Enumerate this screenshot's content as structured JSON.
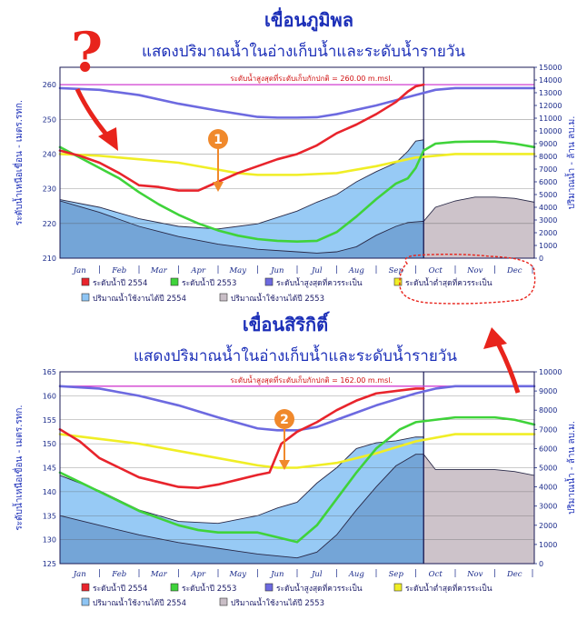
{
  "chart_data": [
    {
      "type": "area",
      "title": "เขื่อนภูมิพล",
      "subtitle": "แสดงปริมาณน้ำในอ่างเก็บน้ำและระดับน้ำรายวัน",
      "ylabel": "ระดับน้ำเหนือเขื่อน - เมตร.รทก.",
      "y2label": "ปริมาณน้ำ - ล้าน ลบ.ม.",
      "ylim": [
        210,
        265
      ],
      "y2lim": [
        0,
        15000
      ],
      "yticks": [
        "210",
        "220",
        "230",
        "240",
        "250",
        "260"
      ],
      "y2ticks": [
        "0",
        "1000",
        "2000",
        "3000",
        "4000",
        "5000",
        "6000",
        "7000",
        "8000",
        "9000",
        "10000",
        "11000",
        "12000",
        "13000",
        "14000",
        "15000"
      ],
      "categories": [
        "Jan",
        "Feb",
        "Mar",
        "Apr",
        "May",
        "Jun",
        "Jul",
        "Aug",
        "Sep",
        "Oct",
        "Nov",
        "Dec"
      ],
      "cap_label": "ระดับน้ำสูงสุดที่ระดับเก็บกักปกติ = 260.00 m.msl.",
      "cap_level": 260,
      "series": [
        {
          "name": "ระดับน้ำปี 2554",
          "color": "#e8242c",
          "axis": "left",
          "x": [
            0,
            0.5,
            1,
            1.5,
            2,
            2.5,
            3,
            3.5,
            4,
            4.5,
            5,
            5.5,
            6,
            6.5,
            7,
            7.5,
            8,
            8.5,
            8.8,
            9,
            9.2
          ],
          "y": [
            241,
            239.5,
            237.5,
            234.5,
            231,
            230.5,
            229.5,
            229.5,
            232,
            234.5,
            236.5,
            238.5,
            240,
            242.5,
            246,
            248.5,
            251.5,
            255,
            258,
            259.5,
            260
          ]
        },
        {
          "name": "ระดับน้ำปี 2553",
          "color": "#3fd33a",
          "axis": "left",
          "x": [
            0,
            0.5,
            1,
            1.5,
            2,
            2.5,
            3,
            3.5,
            4,
            4.5,
            5,
            5.5,
            6,
            6.5,
            7,
            7.5,
            8,
            8.5,
            8.8,
            9,
            9.2,
            9.5,
            10,
            10.5,
            11,
            11.5,
            12
          ],
          "y": [
            242,
            239,
            236,
            233,
            229,
            225.5,
            222.5,
            220,
            218,
            216.5,
            215.5,
            215,
            214.8,
            215,
            217.5,
            222,
            227,
            231.5,
            233,
            236,
            241,
            243,
            243.5,
            243.6,
            243.6,
            243,
            242
          ]
        },
        {
          "name": "ระดับน้ำสูงสุดที่ควรระเป็น",
          "color": "#6d6ae0",
          "axis": "left",
          "x": [
            0,
            1,
            2,
            3,
            4,
            5,
            5.5,
            6,
            6.5,
            7,
            8,
            9,
            9.5,
            10,
            11,
            12
          ],
          "y": [
            259,
            258.5,
            257,
            254.5,
            252.5,
            250.7,
            250.5,
            250.5,
            250.6,
            251.5,
            254,
            257,
            258.5,
            259,
            259,
            259
          ]
        },
        {
          "name": "ระดับน้ำต่ำสุดที่ควรระเป็น",
          "color": "#f0ee26",
          "axis": "left",
          "x": [
            0,
            1,
            2,
            3,
            4,
            4.5,
            5,
            6,
            7,
            8,
            9,
            10,
            11,
            12
          ],
          "y": [
            240,
            239.5,
            238.5,
            237.5,
            235.5,
            234.5,
            234,
            234,
            234.5,
            236.5,
            239,
            240,
            240,
            240
          ]
        },
        {
          "name": "ปริมาณน้ำใช้งานได้ปี 2554",
          "color": "#8ec5f4",
          "axis": "right",
          "kind": "area",
          "x": [
            0,
            1,
            2,
            3,
            4,
            5,
            6,
            6.5,
            7,
            7.5,
            8,
            8.5,
            8.8,
            9,
            9.2
          ],
          "y": [
            4600,
            4000,
            3100,
            2500,
            2300,
            2700,
            3700,
            4400,
            5000,
            6000,
            6800,
            7500,
            8400,
            9200,
            9300
          ]
        },
        {
          "name": "ปริมาณน้ำใช้งานได้ปี 2553",
          "color": "#c9bec6",
          "axis": "right",
          "kind": "area",
          "x": [
            0,
            1,
            2,
            3,
            4,
            5,
            6,
            6.5,
            7,
            7.5,
            8,
            8.5,
            8.8,
            9,
            9.2,
            9.5,
            10,
            10.5,
            11,
            11.5,
            12
          ],
          "y": [
            4500,
            3600,
            2500,
            1700,
            1100,
            700,
            500,
            400,
            500,
            900,
            1800,
            2500,
            2800,
            2850,
            2900,
            4000,
            4500,
            4800,
            4800,
            4700,
            4400
          ]
        }
      ]
    },
    {
      "type": "area",
      "title": "เขื่อนสิริกิติ์",
      "subtitle": "แสดงปริมาณน้ำในอ่างเก็บน้ำและระดับน้ำรายวัน",
      "ylabel": "ระดับน้ำเหนือเขื่อน - เมตร.รทก.",
      "y2label": "ปริมาณน้ำ - ล้าน ลบ.ม.",
      "ylim": [
        125,
        165
      ],
      "y2lim": [
        0,
        10000
      ],
      "yticks": [
        "125",
        "130",
        "135",
        "140",
        "145",
        "150",
        "155",
        "160",
        "165"
      ],
      "y2ticks": [
        "0",
        "1000",
        "2000",
        "3000",
        "4000",
        "5000",
        "6000",
        "7000",
        "8000",
        "9000",
        "10000"
      ],
      "categories": [
        "Jan",
        "Feb",
        "Mar",
        "Apr",
        "May",
        "Jun",
        "Jul",
        "Aug",
        "Sep",
        "Oct",
        "Nov",
        "Dec"
      ],
      "cap_label": "ระดับน้ำสูงสุดที่ระดับเก็บกักปกติ = 162.00 m.msl.",
      "cap_level": 162,
      "series": [
        {
          "name": "ระดับน้ำปี 2554",
          "color": "#e8242c",
          "axis": "left",
          "x": [
            0,
            0.5,
            1,
            1.5,
            2,
            2.5,
            3,
            3.5,
            4,
            4.5,
            5,
            5.3,
            5.6,
            6,
            6.5,
            7,
            7.5,
            8,
            8.5,
            9,
            9.2
          ],
          "y": [
            153,
            150.5,
            147,
            145,
            143,
            142,
            141,
            140.8,
            141.5,
            142.5,
            143.5,
            144,
            150,
            152.5,
            154.5,
            157,
            159,
            160.5,
            161,
            161.5,
            161.5
          ]
        },
        {
          "name": "ระดับน้ำปี 2553",
          "color": "#3fd33a",
          "axis": "left",
          "x": [
            0,
            0.5,
            1,
            1.5,
            2,
            2.5,
            3,
            3.5,
            4,
            4.5,
            5,
            5.5,
            6,
            6.5,
            7,
            7.5,
            8,
            8.3,
            8.6,
            9,
            9.5,
            10,
            10.5,
            11,
            11.5,
            12
          ],
          "y": [
            144,
            142,
            140,
            138,
            136,
            134.5,
            133,
            132,
            131.5,
            131.5,
            131.5,
            130.5,
            129.5,
            133,
            138.5,
            144,
            149,
            151,
            153,
            154.5,
            155,
            155.5,
            155.5,
            155.5,
            155,
            154
          ]
        },
        {
          "name": "ระดับน้ำสูงสุดที่ควรระเป็น",
          "color": "#6d6ae0",
          "axis": "left",
          "x": [
            0,
            1,
            2,
            3,
            4,
            5,
            5.5,
            6,
            6.5,
            7,
            8,
            9,
            9.5,
            10,
            11,
            12
          ],
          "y": [
            162,
            161.5,
            160,
            158,
            155.5,
            153.2,
            152.8,
            152.8,
            153.5,
            155,
            158,
            160.5,
            161.5,
            162,
            162,
            162
          ]
        },
        {
          "name": "ระดับน้ำต่ำสุดที่ควรระเป็น",
          "color": "#f0ee26",
          "axis": "left",
          "x": [
            0,
            1,
            2,
            3,
            4,
            5,
            5.5,
            6,
            7,
            8,
            9,
            10,
            11,
            12
          ],
          "y": [
            152,
            151,
            150,
            148.5,
            147,
            145.5,
            145,
            145,
            146,
            148,
            150.5,
            152,
            152,
            152
          ]
        },
        {
          "name": "ปริมาณน้ำใช้งานได้ปี 2554",
          "color": "#8ec5f4",
          "axis": "right",
          "kind": "area",
          "x": [
            0,
            1,
            2,
            3,
            4,
            5,
            5.5,
            6,
            6.5,
            7,
            7.5,
            8,
            8.5,
            9,
            9.2
          ],
          "y": [
            4600,
            3800,
            2800,
            2200,
            2100,
            2500,
            2900,
            3200,
            4200,
            5000,
            6000,
            6300,
            6400,
            6600,
            6600
          ]
        },
        {
          "name": "ปริมาณน้ำใช้งานได้ปี 2553",
          "color": "#c9bec6",
          "axis": "right",
          "kind": "area",
          "x": [
            0,
            1,
            2,
            3,
            4,
            5,
            6,
            6.5,
            7,
            7.5,
            8,
            8.5,
            9,
            9.2,
            9.5,
            10,
            10.5,
            11,
            11.5,
            12
          ],
          "y": [
            2500,
            2000,
            1500,
            1100,
            800,
            500,
            300,
            600,
            1500,
            2800,
            4000,
            5100,
            5700,
            5700,
            4900,
            4900,
            4900,
            4900,
            4800,
            4600
          ]
        }
      ]
    }
  ],
  "legend_labels": [
    "ระดับน้ำปี 2554",
    "ระดับน้ำปี 2553",
    "ระดับน้ำสูงสุดที่ควรระเป็น",
    "ระดับน้ำต่ำสุดที่ควรระเป็น",
    "ปริมาณน้ำใช้งานได้ปี 2554",
    "ปริมาณน้ำใช้งานได้ปี 2553"
  ],
  "annotations": {
    "question_mark": "?",
    "badge_1": "1",
    "badge_2": "2",
    "arrow_color": "#e8241c",
    "badge_color": "#f0892c"
  }
}
